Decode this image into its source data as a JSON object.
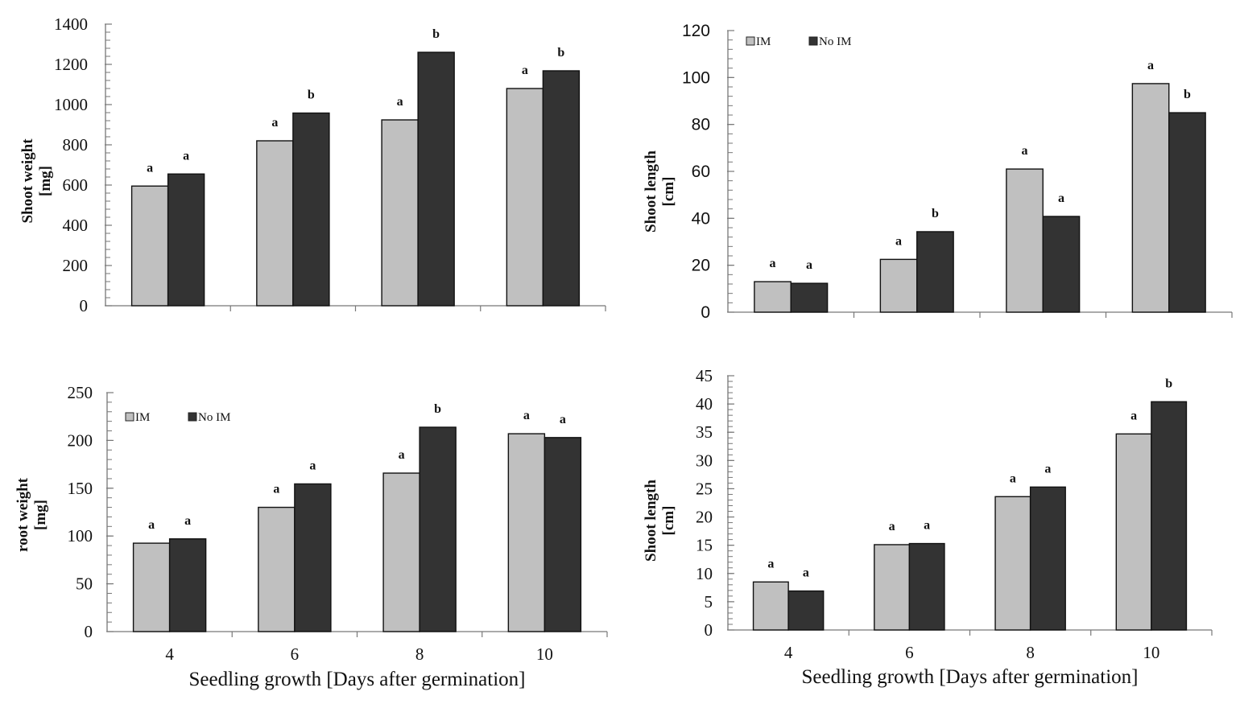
{
  "colors": {
    "IM": "#c0c0c0",
    "No IM": "#333333",
    "axis": "#888888",
    "outline": "#111111"
  },
  "chart_data": [
    {
      "id": "top-left",
      "type": "bar",
      "title": "",
      "xlabel": "",
      "ylabel": [
        "Shoot  weight",
        "[mg]"
      ],
      "categories": [
        "4",
        "6",
        "8",
        "10"
      ],
      "show_category_labels": false,
      "ylim": [
        0,
        1400
      ],
      "yticks": [
        0,
        200,
        400,
        600,
        800,
        1000,
        1200,
        1400
      ],
      "minor_step": 40,
      "tick_font": "serif",
      "legend": null,
      "series": [
        {
          "name": "IM",
          "values": [
            595,
            820,
            924,
            1080
          ],
          "letters": [
            "a",
            "a",
            "a",
            "a"
          ]
        },
        {
          "name": "No IM",
          "values": [
            655,
            958,
            1260,
            1168
          ],
          "letters": [
            "a",
            "b",
            "b",
            "b"
          ]
        }
      ]
    },
    {
      "id": "top-right",
      "type": "bar",
      "title": "",
      "xlabel": "",
      "ylabel": [
        "Shoot length",
        "[cm]"
      ],
      "categories": [
        "4",
        "6",
        "8",
        "10"
      ],
      "show_category_labels": false,
      "ylim": [
        0,
        120
      ],
      "yticks": [
        0,
        20,
        40,
        60,
        80,
        100,
        120
      ],
      "minor_step": 4,
      "tick_font": "sans",
      "legend": {
        "placement": "top-left",
        "entries": [
          "IM",
          "No IM"
        ]
      },
      "series": [
        {
          "name": "IM",
          "values": [
            13,
            22.5,
            61,
            97.4
          ],
          "letters": [
            "a",
            "a",
            "a",
            "a"
          ]
        },
        {
          "name": "No IM",
          "values": [
            12.3,
            34.3,
            40.8,
            85
          ],
          "letters": [
            "a",
            "b",
            "a",
            "b"
          ]
        }
      ]
    },
    {
      "id": "bottom-left",
      "type": "bar",
      "title": "",
      "xlabel": "Seedling growth [Days after germination]",
      "ylabel": [
        "root weight",
        "[mg]"
      ],
      "categories": [
        "4",
        "6",
        "8",
        "10"
      ],
      "show_category_labels": true,
      "ylim": [
        0,
        250
      ],
      "yticks": [
        0,
        50,
        100,
        150,
        200,
        250
      ],
      "minor_step": 10,
      "tick_font": "serif",
      "legend": {
        "placement": "top-left",
        "entries": [
          "IM",
          "No IM"
        ]
      },
      "series": [
        {
          "name": "IM",
          "values": [
            92.5,
            130,
            165.8,
            207
          ],
          "letters": [
            "a",
            "a",
            "a",
            "a"
          ]
        },
        {
          "name": "No IM",
          "values": [
            97,
            154.5,
            213.8,
            203
          ],
          "letters": [
            "a",
            "a",
            "b",
            "a"
          ]
        }
      ]
    },
    {
      "id": "bottom-right",
      "type": "bar",
      "title": "",
      "xlabel": "Seedling growth [Days after germination]",
      "ylabel": [
        "Shoot length",
        "[cm]"
      ],
      "categories": [
        "4",
        "6",
        "8",
        "10"
      ],
      "show_category_labels": true,
      "ylim": [
        0,
        45
      ],
      "yticks": [
        0,
        5,
        10,
        15,
        20,
        25,
        30,
        35,
        40,
        45
      ],
      "minor_step": 1,
      "tick_font": "serif",
      "legend": null,
      "series": [
        {
          "name": "IM",
          "values": [
            8.5,
            15.1,
            23.6,
            34.7
          ],
          "letters": [
            "a",
            "a",
            "a",
            "a"
          ]
        },
        {
          "name": "No IM",
          "values": [
            6.9,
            15.3,
            25.3,
            40.4
          ],
          "letters": [
            "a",
            "a",
            "a",
            "b"
          ]
        }
      ]
    }
  ]
}
